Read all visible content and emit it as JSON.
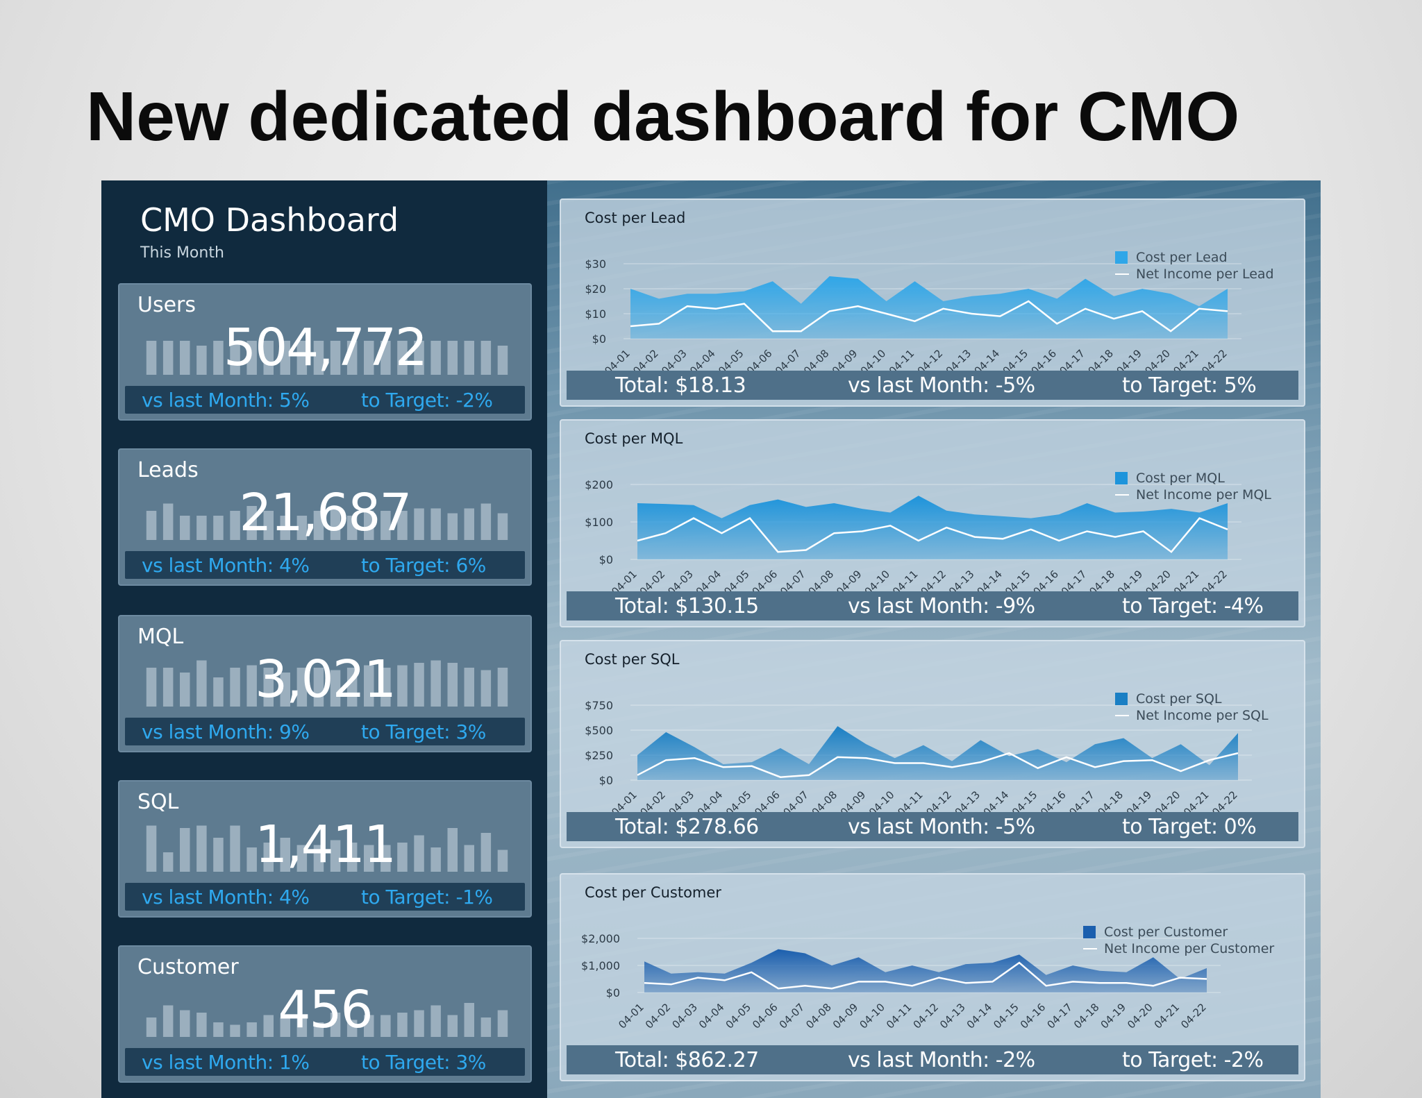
{
  "slide_title": "New dedicated dashboard for CMO",
  "dashboard": {
    "title": "CMO Dashboard",
    "subtitle": "This Month"
  },
  "kpis": [
    {
      "label": "Users",
      "value": "504,772",
      "vs_last_month": "vs last Month: 5%",
      "to_target": "to Target: -2%",
      "spark": [
        0.7,
        0.7,
        0.7,
        0.6,
        0.7,
        0.7,
        0.7,
        0.7,
        0.7,
        0.7,
        0.7,
        0.7,
        0.7,
        0.7,
        0.7,
        0.7,
        0.7,
        0.7,
        0.7,
        0.7,
        0.7,
        0.6
      ]
    },
    {
      "label": "Leads",
      "value": "21,687",
      "vs_last_month": "vs last Month: 4%",
      "to_target": "to Target: 6%",
      "spark": [
        0.6,
        0.75,
        0.5,
        0.5,
        0.5,
        0.6,
        0.7,
        0.6,
        0.5,
        0.5,
        0.6,
        0.65,
        0.5,
        0.6,
        0.6,
        0.6,
        0.65,
        0.65,
        0.55,
        0.65,
        0.75,
        0.55
      ]
    },
    {
      "label": "MQL",
      "value": "3,021",
      "vs_last_month": "vs last Month: 9%",
      "to_target": "to Target: 3%",
      "spark": [
        0.8,
        0.8,
        0.7,
        0.95,
        0.6,
        0.8,
        0.85,
        0.8,
        0.7,
        0.8,
        0.8,
        0.75,
        0.8,
        0.85,
        0.8,
        0.85,
        0.9,
        0.95,
        0.9,
        0.8,
        0.75,
        0.8
      ]
    },
    {
      "label": "SQL",
      "value": "1,411",
      "vs_last_month": "vs last Month: 4%",
      "to_target": "to Target: -1%",
      "spark": [
        0.95,
        0.4,
        0.9,
        0.95,
        0.7,
        0.95,
        0.5,
        0.6,
        0.7,
        0.55,
        0.55,
        0.65,
        0.6,
        0.55,
        0.55,
        0.6,
        0.75,
        0.5,
        0.9,
        0.55,
        0.8,
        0.45
      ]
    },
    {
      "label": "Customer",
      "value": "456",
      "vs_last_month": "vs last Month: 1%",
      "to_target": "to Target: 3%",
      "spark": [
        0.4,
        0.65,
        0.55,
        0.5,
        0.3,
        0.25,
        0.3,
        0.45,
        0.4,
        0.4,
        0.3,
        0.5,
        0.35,
        0.45,
        0.45,
        0.5,
        0.55,
        0.65,
        0.45,
        0.7,
        0.4,
        0.55
      ]
    }
  ],
  "charts": [
    {
      "title": "Cost per Lead",
      "legend_cost": "Cost per Lead",
      "legend_income": "Net Income per Lead",
      "cost_color": "#2fa6e8",
      "y_ticks": [
        "$30",
        "$20",
        "$10",
        "$0"
      ],
      "ymax": 30,
      "cost": [
        20,
        16,
        18,
        18,
        19,
        23,
        14,
        25,
        24,
        15,
        23,
        15,
        17,
        18,
        20,
        16,
        24,
        17,
        20,
        18,
        13,
        20
      ],
      "income": [
        5,
        6,
        13,
        12,
        14,
        3,
        3,
        11,
        13,
        10,
        7,
        12,
        10,
        9,
        15,
        6,
        12,
        8,
        11,
        3,
        12,
        11
      ],
      "total": "Total: $18.13",
      "vs": "vs last Month: -5%",
      "target": "to Target: 5%"
    },
    {
      "title": "Cost per MQL",
      "legend_cost": "Cost per MQL",
      "legend_income": "Net Income per MQL",
      "cost_color": "#1e94db",
      "y_ticks": [
        "$200",
        "$100",
        "$0"
      ],
      "ymax": 200,
      "cost": [
        150,
        148,
        145,
        110,
        145,
        160,
        140,
        150,
        135,
        125,
        170,
        130,
        120,
        115,
        110,
        120,
        150,
        125,
        128,
        135,
        125,
        150
      ],
      "income": [
        50,
        70,
        110,
        70,
        110,
        20,
        25,
        70,
        75,
        90,
        50,
        85,
        60,
        55,
        80,
        50,
        75,
        60,
        75,
        20,
        110,
        80
      ],
      "total": "Total: $130.15",
      "vs": "vs last Month: -9%",
      "target": "to Target: -4%"
    },
    {
      "title": "Cost per SQL",
      "legend_cost": "Cost per SQL",
      "legend_income": "Net Income per SQL",
      "cost_color": "#1a7fc4",
      "y_ticks": [
        "$750",
        "$500",
        "$250",
        "$0"
      ],
      "ymax": 750,
      "cost": [
        250,
        480,
        330,
        160,
        180,
        320,
        160,
        540,
        360,
        220,
        350,
        190,
        400,
        240,
        310,
        180,
        360,
        420,
        220,
        360,
        150,
        470
      ],
      "income": [
        50,
        200,
        220,
        130,
        140,
        30,
        50,
        230,
        220,
        170,
        170,
        130,
        180,
        270,
        120,
        230,
        130,
        190,
        200,
        90,
        200,
        270
      ],
      "total": "Total: $278.66",
      "vs": "vs last Month: -5%",
      "target": "to Target: 0%"
    },
    {
      "title": "Cost per Customer",
      "legend_cost": "Cost per Customer",
      "legend_income": "Net Income per Customer",
      "cost_color": "#1b5fae",
      "y_ticks": [
        "$2,000",
        "$1,000",
        "$0"
      ],
      "ymax": 2000,
      "cost": [
        1150,
        700,
        750,
        700,
        1100,
        1600,
        1450,
        1000,
        1300,
        750,
        1000,
        750,
        1050,
        1100,
        1400,
        650,
        1000,
        800,
        750,
        1300,
        500,
        900
      ],
      "income": [
        350,
        300,
        550,
        450,
        750,
        150,
        250,
        150,
        400,
        400,
        250,
        550,
        350,
        400,
        1100,
        250,
        400,
        350,
        350,
        250,
        550,
        500
      ],
      "total": "Total: $862.27",
      "vs": "vs last Month: -2%",
      "target": "to Target: -2%"
    }
  ],
  "x_labels": [
    "04-01",
    "04-02",
    "04-03",
    "04-04",
    "04-05",
    "04-06",
    "04-07",
    "04-08",
    "04-09",
    "04-10",
    "04-11",
    "04-12",
    "04-13",
    "04-14",
    "04-15",
    "04-16",
    "04-17",
    "04-18",
    "04-19",
    "04-20",
    "04-21",
    "04-22"
  ]
}
